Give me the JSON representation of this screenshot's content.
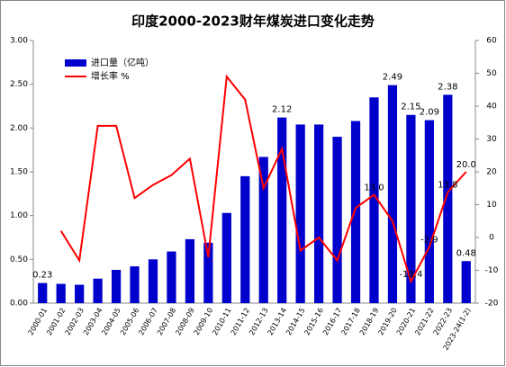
{
  "chart_data": {
    "type": "bar_line",
    "title": "印度2000-2023财年煤炭进口变化走势",
    "categories": [
      "2000-01",
      "2001-02",
      "2002-03",
      "2003-04",
      "2004-05",
      "2005-06",
      "2006-07",
      "2007-08",
      "2008-09",
      "2009-10",
      "2010-11",
      "2011-12",
      "2012-13",
      "2013-14",
      "2014-15",
      "2015-16",
      "2016-17",
      "2017-18",
      "2018-19",
      "2019-20",
      "2020-21",
      "2021-22",
      "2022-23",
      "2023-24(1-2)"
    ],
    "series": [
      {
        "name": "进口量（亿吨）",
        "type": "bar",
        "color": "#0000cc",
        "label_color": "#0033cc",
        "values": [
          0.23,
          0.22,
          0.21,
          0.28,
          0.38,
          0.42,
          0.5,
          0.59,
          0.73,
          0.69,
          1.03,
          1.45,
          1.67,
          2.12,
          2.04,
          2.04,
          1.9,
          2.08,
          2.35,
          2.49,
          2.15,
          2.09,
          2.38,
          0.48
        ],
        "value_labels": [
          "0.23",
          null,
          null,
          null,
          null,
          null,
          null,
          null,
          null,
          null,
          null,
          null,
          null,
          "2.12",
          null,
          null,
          null,
          null,
          null,
          "2.49",
          "2.15",
          "2.09",
          "2.38",
          "0.48"
        ]
      },
      {
        "name": "增长率 %",
        "type": "line",
        "axis": "y2",
        "color": "#ff0000",
        "values": [
          null,
          2,
          -7,
          34,
          34,
          12,
          16,
          19,
          24,
          -6,
          49,
          42,
          15,
          27,
          -4,
          0,
          -7,
          9,
          13.0,
          5,
          -13.4,
          -2.9,
          13.8,
          20.0
        ],
        "value_labels": [
          null,
          null,
          null,
          null,
          null,
          null,
          null,
          null,
          null,
          null,
          null,
          null,
          null,
          null,
          null,
          null,
          null,
          null,
          "13.0",
          null,
          "-13.4",
          "-2.9",
          "13.8",
          "20.0"
        ]
      }
    ],
    "ylim": [
      0,
      3
    ],
    "yticks": [
      {
        "value": 0,
        "label": "0.00"
      },
      {
        "value": 0.5,
        "label": "0.50"
      },
      {
        "value": 1,
        "label": "1.00"
      },
      {
        "value": 1.5,
        "label": "1.50"
      },
      {
        "value": 2,
        "label": "2.00"
      },
      {
        "value": 2.5,
        "label": "2.50"
      },
      {
        "value": 3,
        "label": "3.00"
      }
    ],
    "y2lim": [
      -20,
      60
    ],
    "y2ticks": [
      -20,
      -10,
      0,
      10,
      20,
      30,
      40,
      50,
      60
    ],
    "grid": false
  }
}
